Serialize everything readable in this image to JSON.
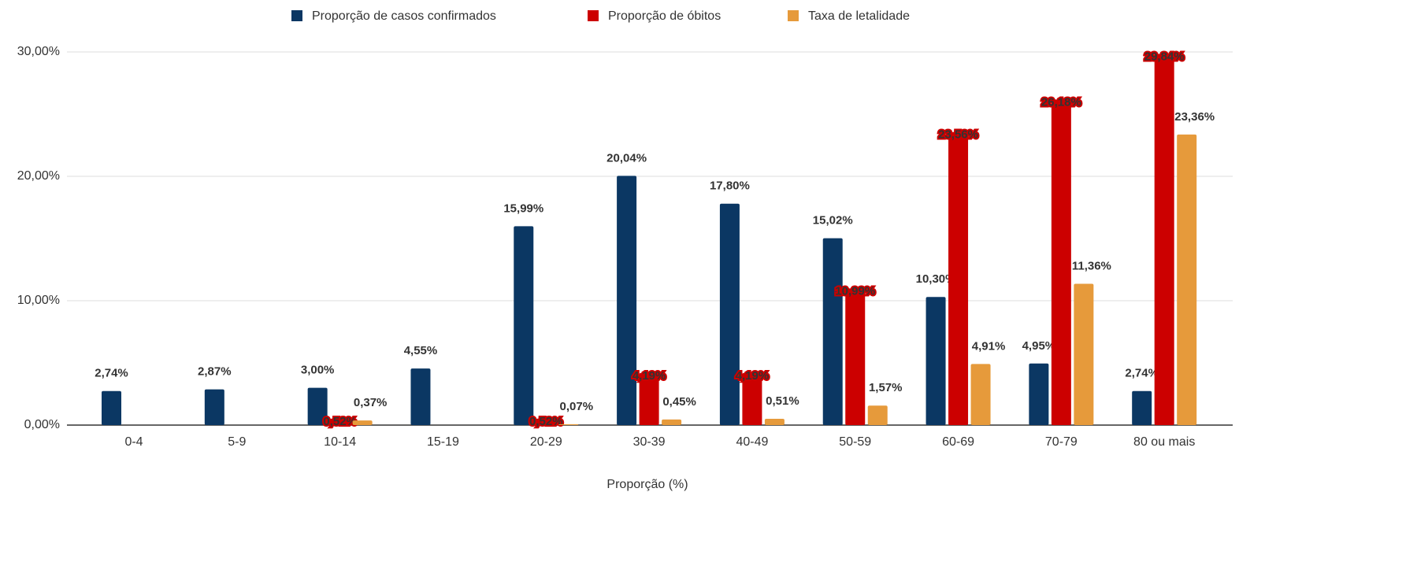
{
  "chart_data": {
    "type": "bar",
    "x_label": "Proporção (%)",
    "categories": [
      "0-4",
      "5-9",
      "10-14",
      "15-19",
      "20-29",
      "30-39",
      "40-49",
      "50-59",
      "60-69",
      "70-79",
      "80 ou mais"
    ],
    "series": [
      {
        "name": "Proporção de casos confirmados",
        "color": "#0b3763",
        "values": [
          2.74,
          2.87,
          3.0,
          4.55,
          15.99,
          20.04,
          17.8,
          15.02,
          10.3,
          4.95,
          2.74
        ],
        "value_labels": [
          "2,74%",
          "2,87%",
          "3,00%",
          "4,55%",
          "15,99%",
          "20,04%",
          "17,80%",
          "15,02%",
          "10,30%",
          "4,95%",
          "2,74%"
        ]
      },
      {
        "name": "Proporção de óbitos",
        "color": "#cc0000",
        "values": [
          null,
          null,
          0.52,
          null,
          0.52,
          4.19,
          4.19,
          10.99,
          23.56,
          26.18,
          29.84
        ],
        "value_labels": [
          null,
          null,
          "0,52%",
          null,
          "0,52%",
          "4,19%",
          "4,19%",
          "10,99%",
          "23,56%",
          "26,18%",
          "29,84%"
        ]
      },
      {
        "name": "Taxa de letalidade",
        "color": "#e69a3b",
        "values": [
          null,
          null,
          0.37,
          null,
          0.07,
          0.45,
          0.51,
          1.57,
          4.91,
          11.36,
          23.36
        ],
        "value_labels": [
          null,
          null,
          "0,37%",
          null,
          "0,07%",
          "0,45%",
          "0,51%",
          "1,57%",
          "4,91%",
          "11,36%",
          "23,36%"
        ]
      }
    ],
    "ylim": [
      0,
      30
    ],
    "yticks": [
      {
        "value": 0,
        "label": "0,00%"
      },
      {
        "value": 10,
        "label": "10,00%"
      },
      {
        "value": 20,
        "label": "20,00%"
      },
      {
        "value": 30,
        "label": "30,00%"
      }
    ],
    "grid": true,
    "legend": "top"
  }
}
